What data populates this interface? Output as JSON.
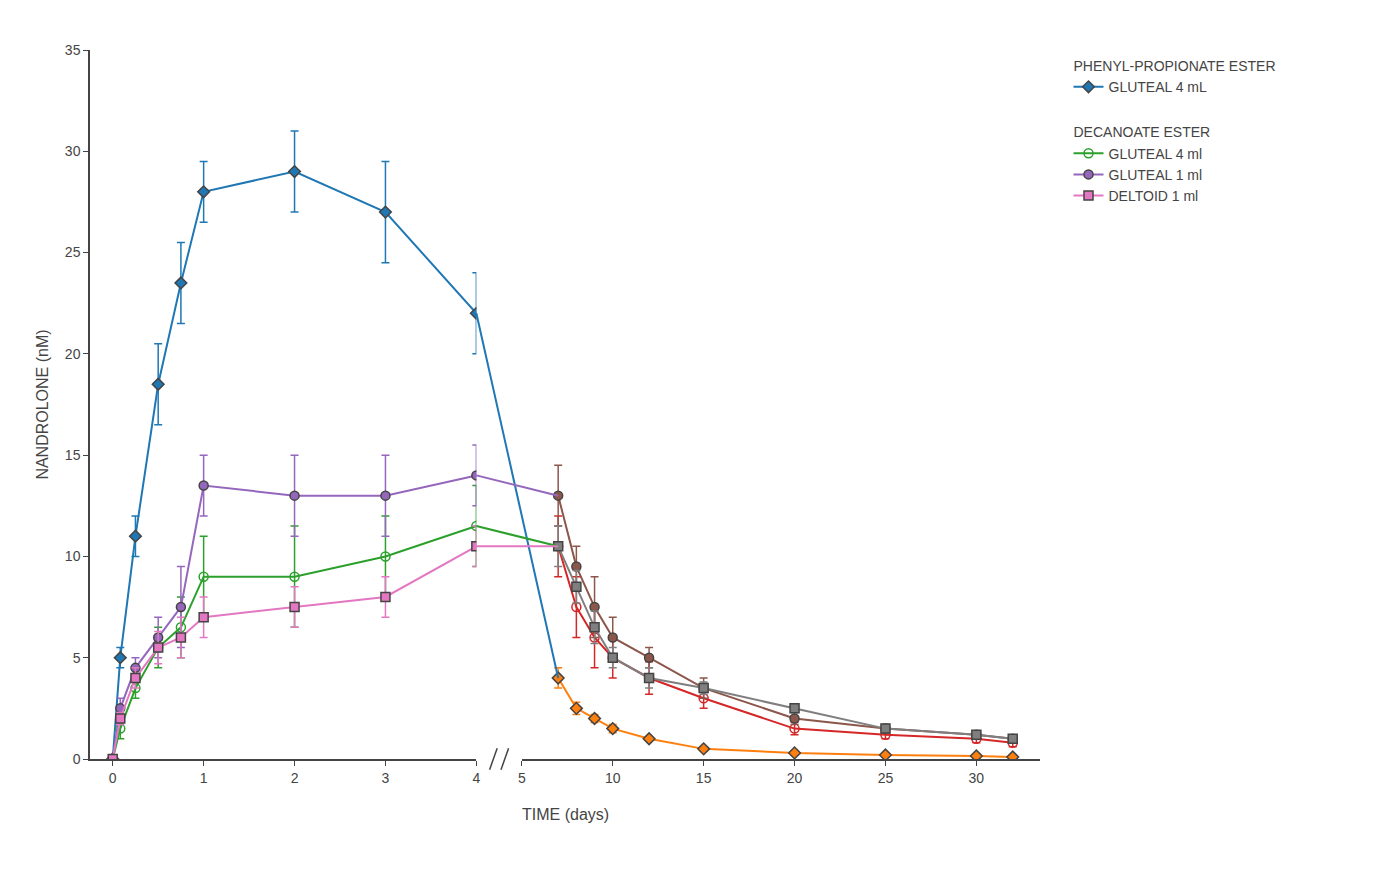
{
  "chart_data": {
    "type": "line",
    "xlabel": "TIME (days)",
    "ylabel": "NANDROLONE (nM)",
    "x": [
      0,
      0.083,
      0.25,
      0.5,
      0.75,
      1.0,
      2.0,
      3.0,
      4.0,
      7,
      8,
      9,
      10,
      12,
      15,
      20,
      25,
      30,
      32
    ],
    "series": [
      {
        "name": "GLUTEAL 4 mL",
        "group": "PHENYL-PROPIONATE ESTER",
        "marker": "diamond",
        "values": [
          0,
          5.0,
          11.0,
          18.5,
          23.5,
          28.0,
          29.0,
          27.0,
          22.0,
          4.0,
          2.5,
          2.0,
          1.5,
          1.0,
          0.5,
          0.3,
          0.2,
          0.15,
          0.1
        ],
        "errors": [
          0,
          0.5,
          1.0,
          2.0,
          2.0,
          1.5,
          2.0,
          2.5,
          2.0,
          0.5,
          0.3,
          0.2,
          0.2,
          0.1,
          0.1,
          0.1,
          0.1,
          0.1,
          0.1
        ]
      },
      {
        "name": "GLUTEAL 4 ml",
        "group": "DECANOATE ESTER",
        "marker": "circle-open",
        "values": [
          0,
          1.5,
          3.5,
          5.5,
          6.5,
          9.0,
          9.0,
          10.0,
          11.5,
          10.5,
          7.5,
          6.0,
          5.0,
          4.0,
          3.0,
          1.5,
          1.2,
          1.0,
          0.8
        ],
        "errors": [
          0,
          0.5,
          0.5,
          1.0,
          1.5,
          2.0,
          2.5,
          2.0,
          2.0,
          1.5,
          1.5,
          1.5,
          1.0,
          0.8,
          0.5,
          0.3,
          0.2,
          0.2,
          0.2
        ]
      },
      {
        "name": "GLUTEAL 1 ml",
        "group": "DECANOATE ESTER",
        "marker": "circle",
        "values": [
          0,
          2.5,
          4.5,
          6.0,
          7.5,
          13.5,
          13.0,
          13.0,
          14.0,
          13.0,
          9.5,
          7.5,
          6.0,
          5.0,
          3.5,
          2.0,
          1.5,
          1.2,
          1.0
        ],
        "errors": [
          0,
          0.5,
          0.5,
          1.0,
          2.0,
          1.5,
          2.0,
          2.0,
          1.5,
          1.5,
          1.0,
          1.5,
          1.0,
          0.5,
          0.5,
          0.3,
          0.2,
          0.2,
          0.2
        ]
      },
      {
        "name": "DELTOID 1 ml",
        "group": "DECANOATE ESTER",
        "marker": "square",
        "values": [
          0,
          2.0,
          4.0,
          5.5,
          6.0,
          7.0,
          7.5,
          8.0,
          10.5,
          10.5,
          8.5,
          6.5,
          5.0,
          4.0,
          3.5,
          2.5,
          1.5,
          1.2,
          1.0
        ],
        "errors": [
          0,
          0.3,
          0.5,
          0.8,
          1.0,
          1.0,
          1.0,
          1.0,
          1.0,
          1.0,
          0.8,
          0.8,
          0.5,
          0.5,
          0.3,
          0.2,
          0.2,
          0.1,
          0.1
        ]
      }
    ],
    "xlim": [
      [
        -0.25,
        4
      ],
      [
        5,
        33.5
      ]
    ],
    "xticks": [
      [
        0,
        1,
        2,
        3,
        4
      ],
      [
        5,
        10,
        15,
        20,
        25,
        30
      ]
    ],
    "ylim": [
      0,
      35
    ],
    "yticks": [
      0,
      5,
      10,
      15,
      20,
      25,
      30,
      35
    ],
    "grid": false
  }
}
